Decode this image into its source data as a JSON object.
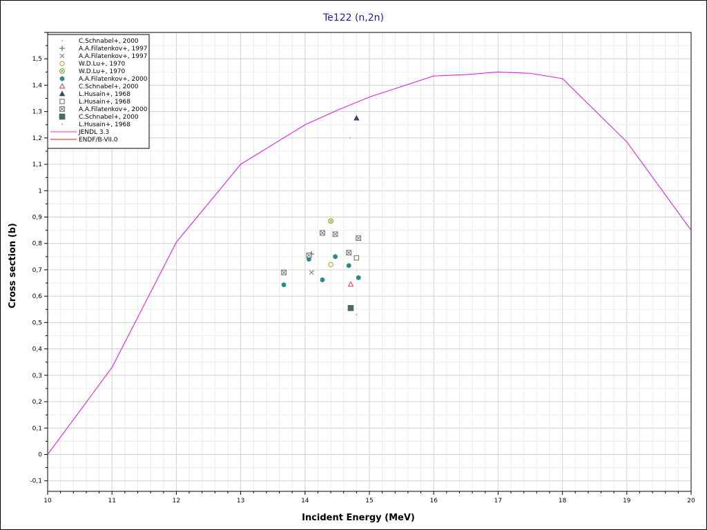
{
  "chart_data": {
    "type": "scatter",
    "title": "Te122 (n,2n)",
    "xlabel": "Incident Energy (MeV)",
    "ylabel": "Cross section (b)",
    "xlim": [
      10,
      20
    ],
    "ylim": [
      -0.14,
      1.6
    ],
    "x_ticks": [
      10,
      11,
      12,
      13,
      14,
      15,
      16,
      17,
      18,
      19,
      20
    ],
    "x_tick_labels": [
      "10",
      "11",
      "12",
      "13",
      "14",
      "15",
      "16",
      "17",
      "18",
      "19",
      "20"
    ],
    "y_ticks": [
      -0.1,
      0,
      0.1,
      0.2,
      0.3,
      0.4,
      0.5,
      0.6,
      0.7,
      0.8,
      0.9,
      1,
      1.1,
      1.2,
      1.3,
      1.4,
      1.5
    ],
    "y_tick_labels": [
      "-0,1",
      "0",
      "0,1",
      "0,2",
      "0,3",
      "0,4",
      "0,5",
      "0,6",
      "0,7",
      "0,8",
      "0,9",
      "1",
      "1,1",
      "1,2",
      "1,3",
      "1,4",
      "1,5"
    ],
    "grid": true,
    "legend_position": "top-left",
    "series": [
      {
        "name": "C.Schnabel+, 2000",
        "marker": "dot",
        "color": "#4aa0a0",
        "points": [
          [
            14.1,
            0.765
          ]
        ]
      },
      {
        "name": "A.A.Filatenkov+, 1997",
        "marker": "plus",
        "color": "#2e6e6e",
        "points": [
          [
            14.1,
            0.76
          ]
        ]
      },
      {
        "name": "A.A.Filatenkov+, 1997",
        "marker": "cross",
        "color": "#7a7a7a",
        "points": [
          [
            14.1,
            0.69
          ]
        ]
      },
      {
        "name": "W.D.Lu+, 1970",
        "marker": "circle-open",
        "color": "#c89a3a",
        "points": [
          [
            14.4,
            0.72
          ]
        ]
      },
      {
        "name": "W.D.Lu+, 1970",
        "marker": "circle-x",
        "color": "#7fae3c",
        "points": [
          [
            14.4,
            0.885
          ]
        ]
      },
      {
        "name": "A.A.Filatenkov+, 2000",
        "marker": "hexagon",
        "color": "#2f8a86",
        "points": [
          [
            13.67,
            0.643
          ],
          [
            14.06,
            0.74
          ],
          [
            14.27,
            0.662
          ],
          [
            14.47,
            0.75
          ],
          [
            14.68,
            0.716
          ],
          [
            14.83,
            0.67
          ]
        ]
      },
      {
        "name": "C.Schnabel+, 2000",
        "marker": "triangle-open",
        "color": "#c0506e",
        "points": [
          [
            14.71,
            0.645
          ]
        ]
      },
      {
        "name": "L.Husain+, 1968",
        "marker": "triangle",
        "color": "#3a4a60",
        "points": [
          [
            14.8,
            1.275
          ]
        ]
      },
      {
        "name": "L.Husain+, 1968",
        "marker": "square-open",
        "color": "#8a6e58",
        "points": [
          [
            14.8,
            0.745
          ]
        ]
      },
      {
        "name": "A.A.Filatenkov+, 2000",
        "marker": "square-x",
        "color": "#7a7a8a",
        "points": [
          [
            13.67,
            0.69
          ],
          [
            14.06,
            0.755
          ],
          [
            14.27,
            0.84
          ],
          [
            14.47,
            0.835
          ],
          [
            14.68,
            0.765
          ],
          [
            14.83,
            0.82
          ]
        ]
      },
      {
        "name": "C.Schnabel+, 2000",
        "marker": "square",
        "color": "#4a6a62",
        "points": [
          [
            14.71,
            0.555
          ]
        ]
      },
      {
        "name": "L.Husain+, 1968",
        "marker": "dot",
        "color": "#9a8a5a",
        "points": [
          [
            14.7,
            1.2
          ],
          [
            14.8,
            0.53
          ]
        ]
      },
      {
        "name": "JENDL 3.3",
        "marker": "line",
        "color": "#e020e0",
        "points": [
          [
            10.0,
            0.0
          ],
          [
            11.0,
            0.33
          ],
          [
            12.0,
            0.805
          ],
          [
            13.0,
            1.1
          ],
          [
            14.0,
            1.25
          ],
          [
            14.5,
            1.305
          ],
          [
            15.0,
            1.355
          ],
          [
            15.5,
            1.395
          ],
          [
            16.0,
            1.435
          ],
          [
            16.5,
            1.44
          ],
          [
            17.0,
            1.45
          ],
          [
            17.5,
            1.445
          ],
          [
            18.0,
            1.425
          ],
          [
            19.0,
            1.185
          ],
          [
            20.0,
            0.85
          ]
        ]
      },
      {
        "name": "ENDF/B-VII.0",
        "marker": "line",
        "color": "#e01010",
        "points": []
      }
    ]
  }
}
